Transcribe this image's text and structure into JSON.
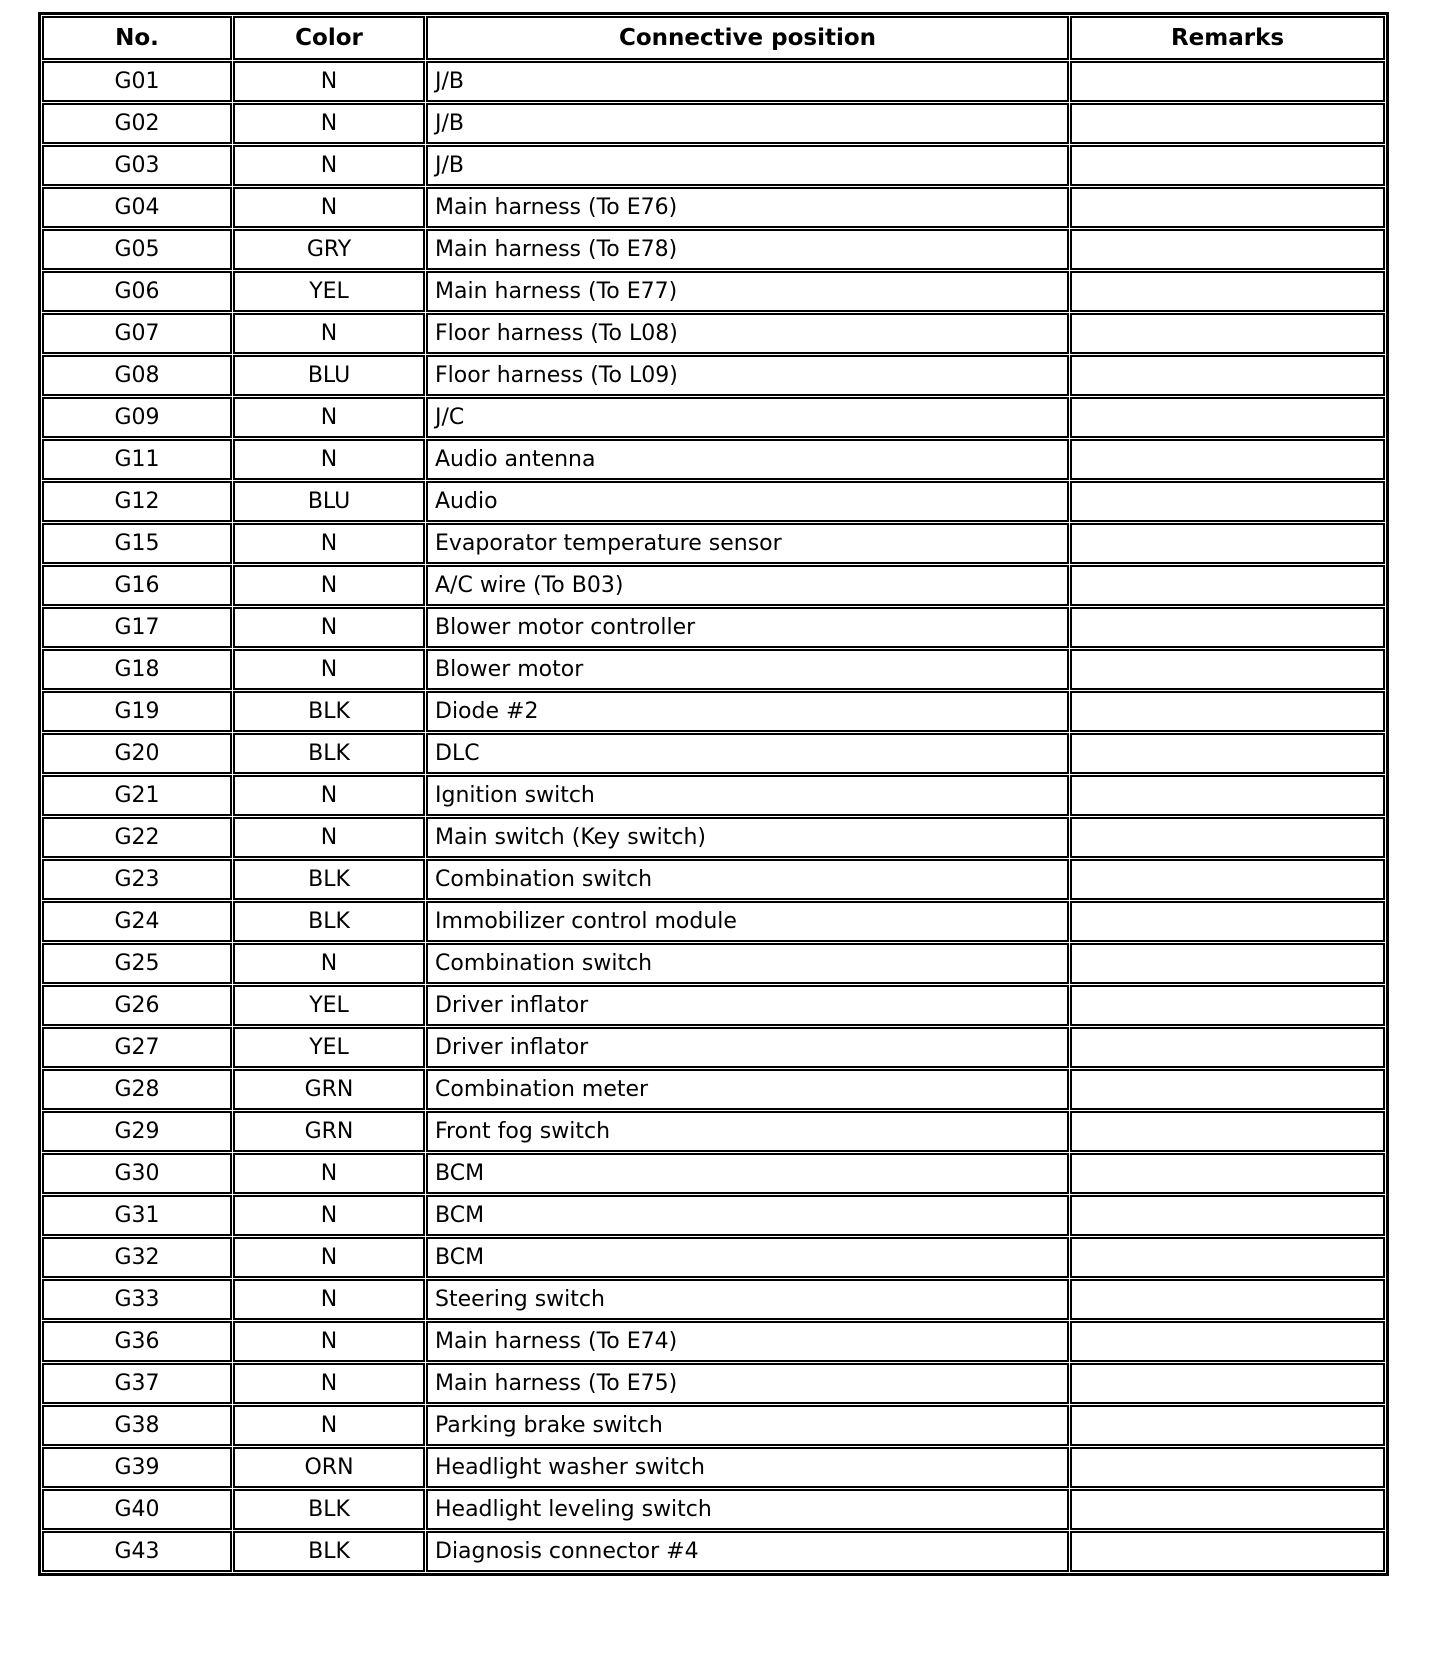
{
  "table": {
    "headers": [
      "No.",
      "Color",
      "Connective position",
      "Remarks"
    ],
    "rows": [
      {
        "no": "G01",
        "color": "N",
        "position": "J/B",
        "remarks": ""
      },
      {
        "no": "G02",
        "color": "N",
        "position": "J/B",
        "remarks": ""
      },
      {
        "no": "G03",
        "color": "N",
        "position": "J/B",
        "remarks": ""
      },
      {
        "no": "G04",
        "color": "N",
        "position": "Main harness (To E76)",
        "remarks": ""
      },
      {
        "no": "G05",
        "color": "GRY",
        "position": "Main harness (To E78)",
        "remarks": ""
      },
      {
        "no": "G06",
        "color": "YEL",
        "position": "Main harness (To E77)",
        "remarks": ""
      },
      {
        "no": "G07",
        "color": "N",
        "position": "Floor harness (To L08)",
        "remarks": ""
      },
      {
        "no": "G08",
        "color": "BLU",
        "position": "Floor harness (To L09)",
        "remarks": ""
      },
      {
        "no": "G09",
        "color": "N",
        "position": "J/C",
        "remarks": ""
      },
      {
        "no": "G11",
        "color": "N",
        "position": "Audio antenna",
        "remarks": ""
      },
      {
        "no": "G12",
        "color": "BLU",
        "position": "Audio",
        "remarks": ""
      },
      {
        "no": "G15",
        "color": "N",
        "position": "Evaporator temperature sensor",
        "remarks": ""
      },
      {
        "no": "G16",
        "color": "N",
        "position": "A/C wire (To B03)",
        "remarks": ""
      },
      {
        "no": "G17",
        "color": "N",
        "position": "Blower motor controller",
        "remarks": ""
      },
      {
        "no": "G18",
        "color": "N",
        "position": "Blower motor",
        "remarks": ""
      },
      {
        "no": "G19",
        "color": "BLK",
        "position": "Diode #2",
        "remarks": ""
      },
      {
        "no": "G20",
        "color": "BLK",
        "position": "DLC",
        "remarks": ""
      },
      {
        "no": "G21",
        "color": "N",
        "position": "Ignition switch",
        "remarks": ""
      },
      {
        "no": "G22",
        "color": "N",
        "position": "Main switch (Key switch)",
        "remarks": ""
      },
      {
        "no": "G23",
        "color": "BLK",
        "position": "Combination switch",
        "remarks": ""
      },
      {
        "no": "G24",
        "color": "BLK",
        "position": "Immobilizer control module",
        "remarks": ""
      },
      {
        "no": "G25",
        "color": "N",
        "position": "Combination switch",
        "remarks": ""
      },
      {
        "no": "G26",
        "color": "YEL",
        "position": "Driver inflator",
        "remarks": ""
      },
      {
        "no": "G27",
        "color": "YEL",
        "position": "Driver inflator",
        "remarks": ""
      },
      {
        "no": "G28",
        "color": "GRN",
        "position": "Combination meter",
        "remarks": ""
      },
      {
        "no": "G29",
        "color": "GRN",
        "position": "Front fog switch",
        "remarks": ""
      },
      {
        "no": "G30",
        "color": "N",
        "position": "BCM",
        "remarks": ""
      },
      {
        "no": "G31",
        "color": "N",
        "position": "BCM",
        "remarks": ""
      },
      {
        "no": "G32",
        "color": "N",
        "position": "BCM",
        "remarks": ""
      },
      {
        "no": "G33",
        "color": "N",
        "position": "Steering switch",
        "remarks": ""
      },
      {
        "no": "G36",
        "color": "N",
        "position": "Main harness (To E74)",
        "remarks": ""
      },
      {
        "no": "G37",
        "color": "N",
        "position": "Main harness (To E75)",
        "remarks": ""
      },
      {
        "no": "G38",
        "color": "N",
        "position": "Parking brake switch",
        "remarks": ""
      },
      {
        "no": "G39",
        "color": "ORN",
        "position": "Headlight washer switch",
        "remarks": ""
      },
      {
        "no": "G40",
        "color": "BLK",
        "position": "Headlight leveling switch",
        "remarks": ""
      },
      {
        "no": "G43",
        "color": "BLK",
        "position": "Diagnosis connector #4",
        "remarks": ""
      }
    ]
  }
}
